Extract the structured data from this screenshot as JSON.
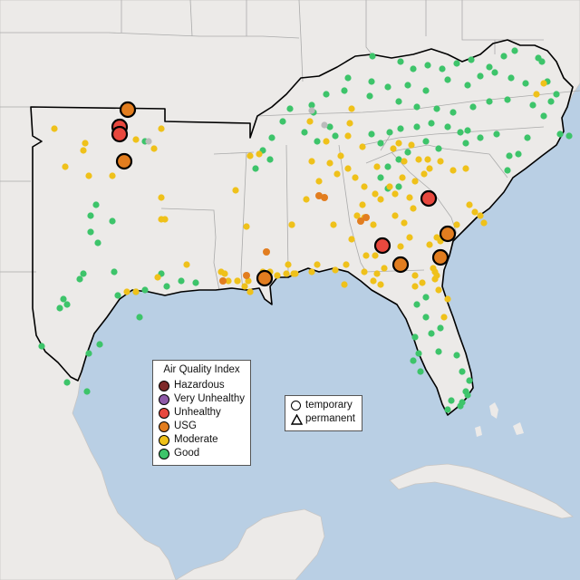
{
  "legend": {
    "title": "Air Quality Index",
    "categories": [
      {
        "label": "Hazardous",
        "color": "#7e2a2a"
      },
      {
        "label": "Very Unhealthy",
        "color": "#8e5aa8"
      },
      {
        "label": "Unhealthy",
        "color": "#e8483e"
      },
      {
        "label": "USG",
        "color": "#e27d1f"
      },
      {
        "label": "Moderate",
        "color": "#efc11a"
      },
      {
        "label": "Good",
        "color": "#3dc46a"
      }
    ]
  },
  "shape_legend": {
    "items": [
      {
        "label": "temporary",
        "shape": "circle"
      },
      {
        "label": "permanent",
        "shape": "triangle"
      }
    ]
  },
  "colors": {
    "water": "#b9cfe4",
    "land": "#eceae8",
    "region_border": "#000000",
    "state_border": "#aaaaaa",
    "no_data": "#bbbbbb"
  }
}
